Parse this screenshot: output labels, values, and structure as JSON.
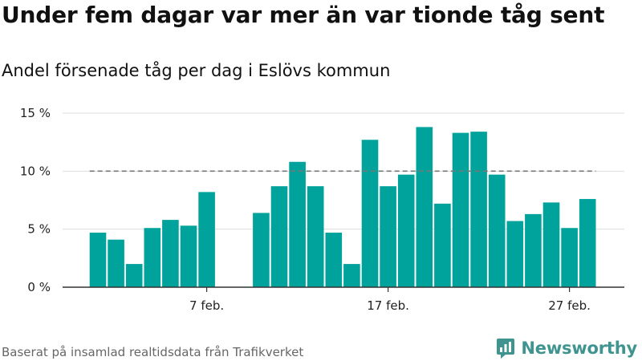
{
  "title": "Under fem dagar var mer än var tionde tåg sent",
  "subtitle": "Andel försenade tåg per dag i Eslövs kommun",
  "source": "Baserat på insamlad realtidsdata från Trafikverket",
  "brand": {
    "name": "Newsworthy",
    "icon": "bar-chart-icon"
  },
  "colors": {
    "bar": "#00a39b",
    "reference_line": "#777777",
    "grid": "#dddddd",
    "axis": "#333333",
    "brand": "#3f9490"
  },
  "chart_data": {
    "type": "bar",
    "title": "Under fem dagar var mer än var tionde tåg sent",
    "subtitle": "Andel försenade tåg per dag i Eslövs kommun",
    "x": [
      "2/1",
      "2/2",
      "2/3",
      "2/4",
      "2/5",
      "2/6",
      "2/7",
      "2/8",
      "2/9",
      "2/10",
      "2/11",
      "2/12",
      "2/13",
      "2/14",
      "2/15",
      "2/16",
      "2/17",
      "2/18",
      "2/19",
      "2/20",
      "2/21",
      "2/22",
      "2/23",
      "2/24",
      "2/25",
      "2/26",
      "2/27",
      "2/28"
    ],
    "values": [
      4.7,
      4.1,
      2.0,
      5.1,
      5.8,
      5.3,
      8.2,
      null,
      null,
      6.4,
      8.7,
      10.8,
      8.7,
      4.7,
      2.0,
      12.7,
      8.7,
      9.7,
      13.8,
      7.2,
      13.3,
      13.4,
      9.7,
      5.7,
      6.3,
      7.3,
      5.1,
      7.6
    ],
    "unit": "%",
    "ylim": [
      0,
      15
    ],
    "yticks": [
      0,
      5,
      10,
      15
    ],
    "ytick_labels": [
      "0 %",
      "5 %",
      "10 %",
      "15 %"
    ],
    "xticks": [
      {
        "index": 6,
        "label": "7 feb."
      },
      {
        "index": 16,
        "label": "17 feb."
      },
      {
        "index": 26,
        "label": "27 feb."
      }
    ],
    "reference_line": {
      "value": 10,
      "style": "dashed"
    },
    "grid": true,
    "legend": "none"
  }
}
